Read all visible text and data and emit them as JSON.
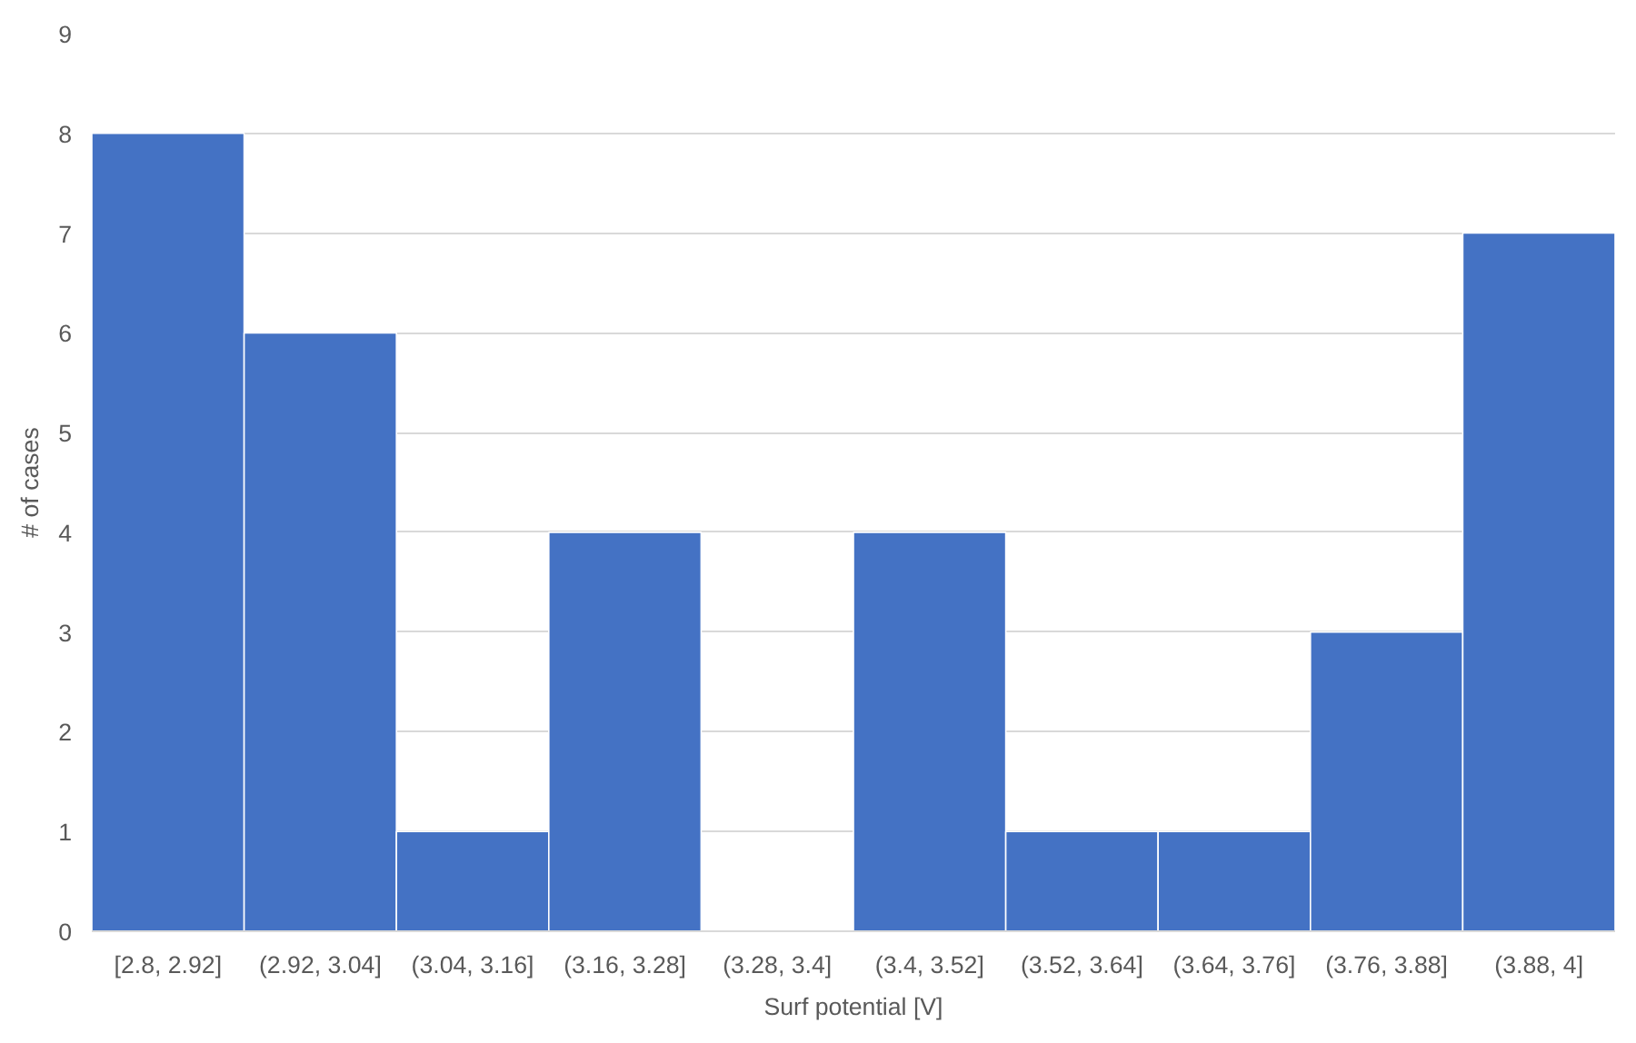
{
  "chart_data": {
    "type": "bar",
    "xlabel": "Surf potential [V]",
    "ylabel": "# of cases",
    "categories": [
      "[2.8, 2.92]",
      "(2.92, 3.04]",
      "(3.04, 3.16]",
      "(3.16, 3.28]",
      "(3.28, 3.4]",
      "(3.4, 3.52]",
      "(3.52, 3.64]",
      "(3.64, 3.76]",
      "(3.76, 3.88]",
      "(3.88, 4]"
    ],
    "values": [
      8,
      6,
      1,
      4,
      0,
      4,
      1,
      1,
      3,
      7
    ],
    "color": "#4472c4",
    "ylim": [
      0,
      9
    ],
    "yticks": [
      0,
      1,
      2,
      3,
      4,
      5,
      6,
      7,
      8,
      9
    ],
    "grid": "y"
  }
}
